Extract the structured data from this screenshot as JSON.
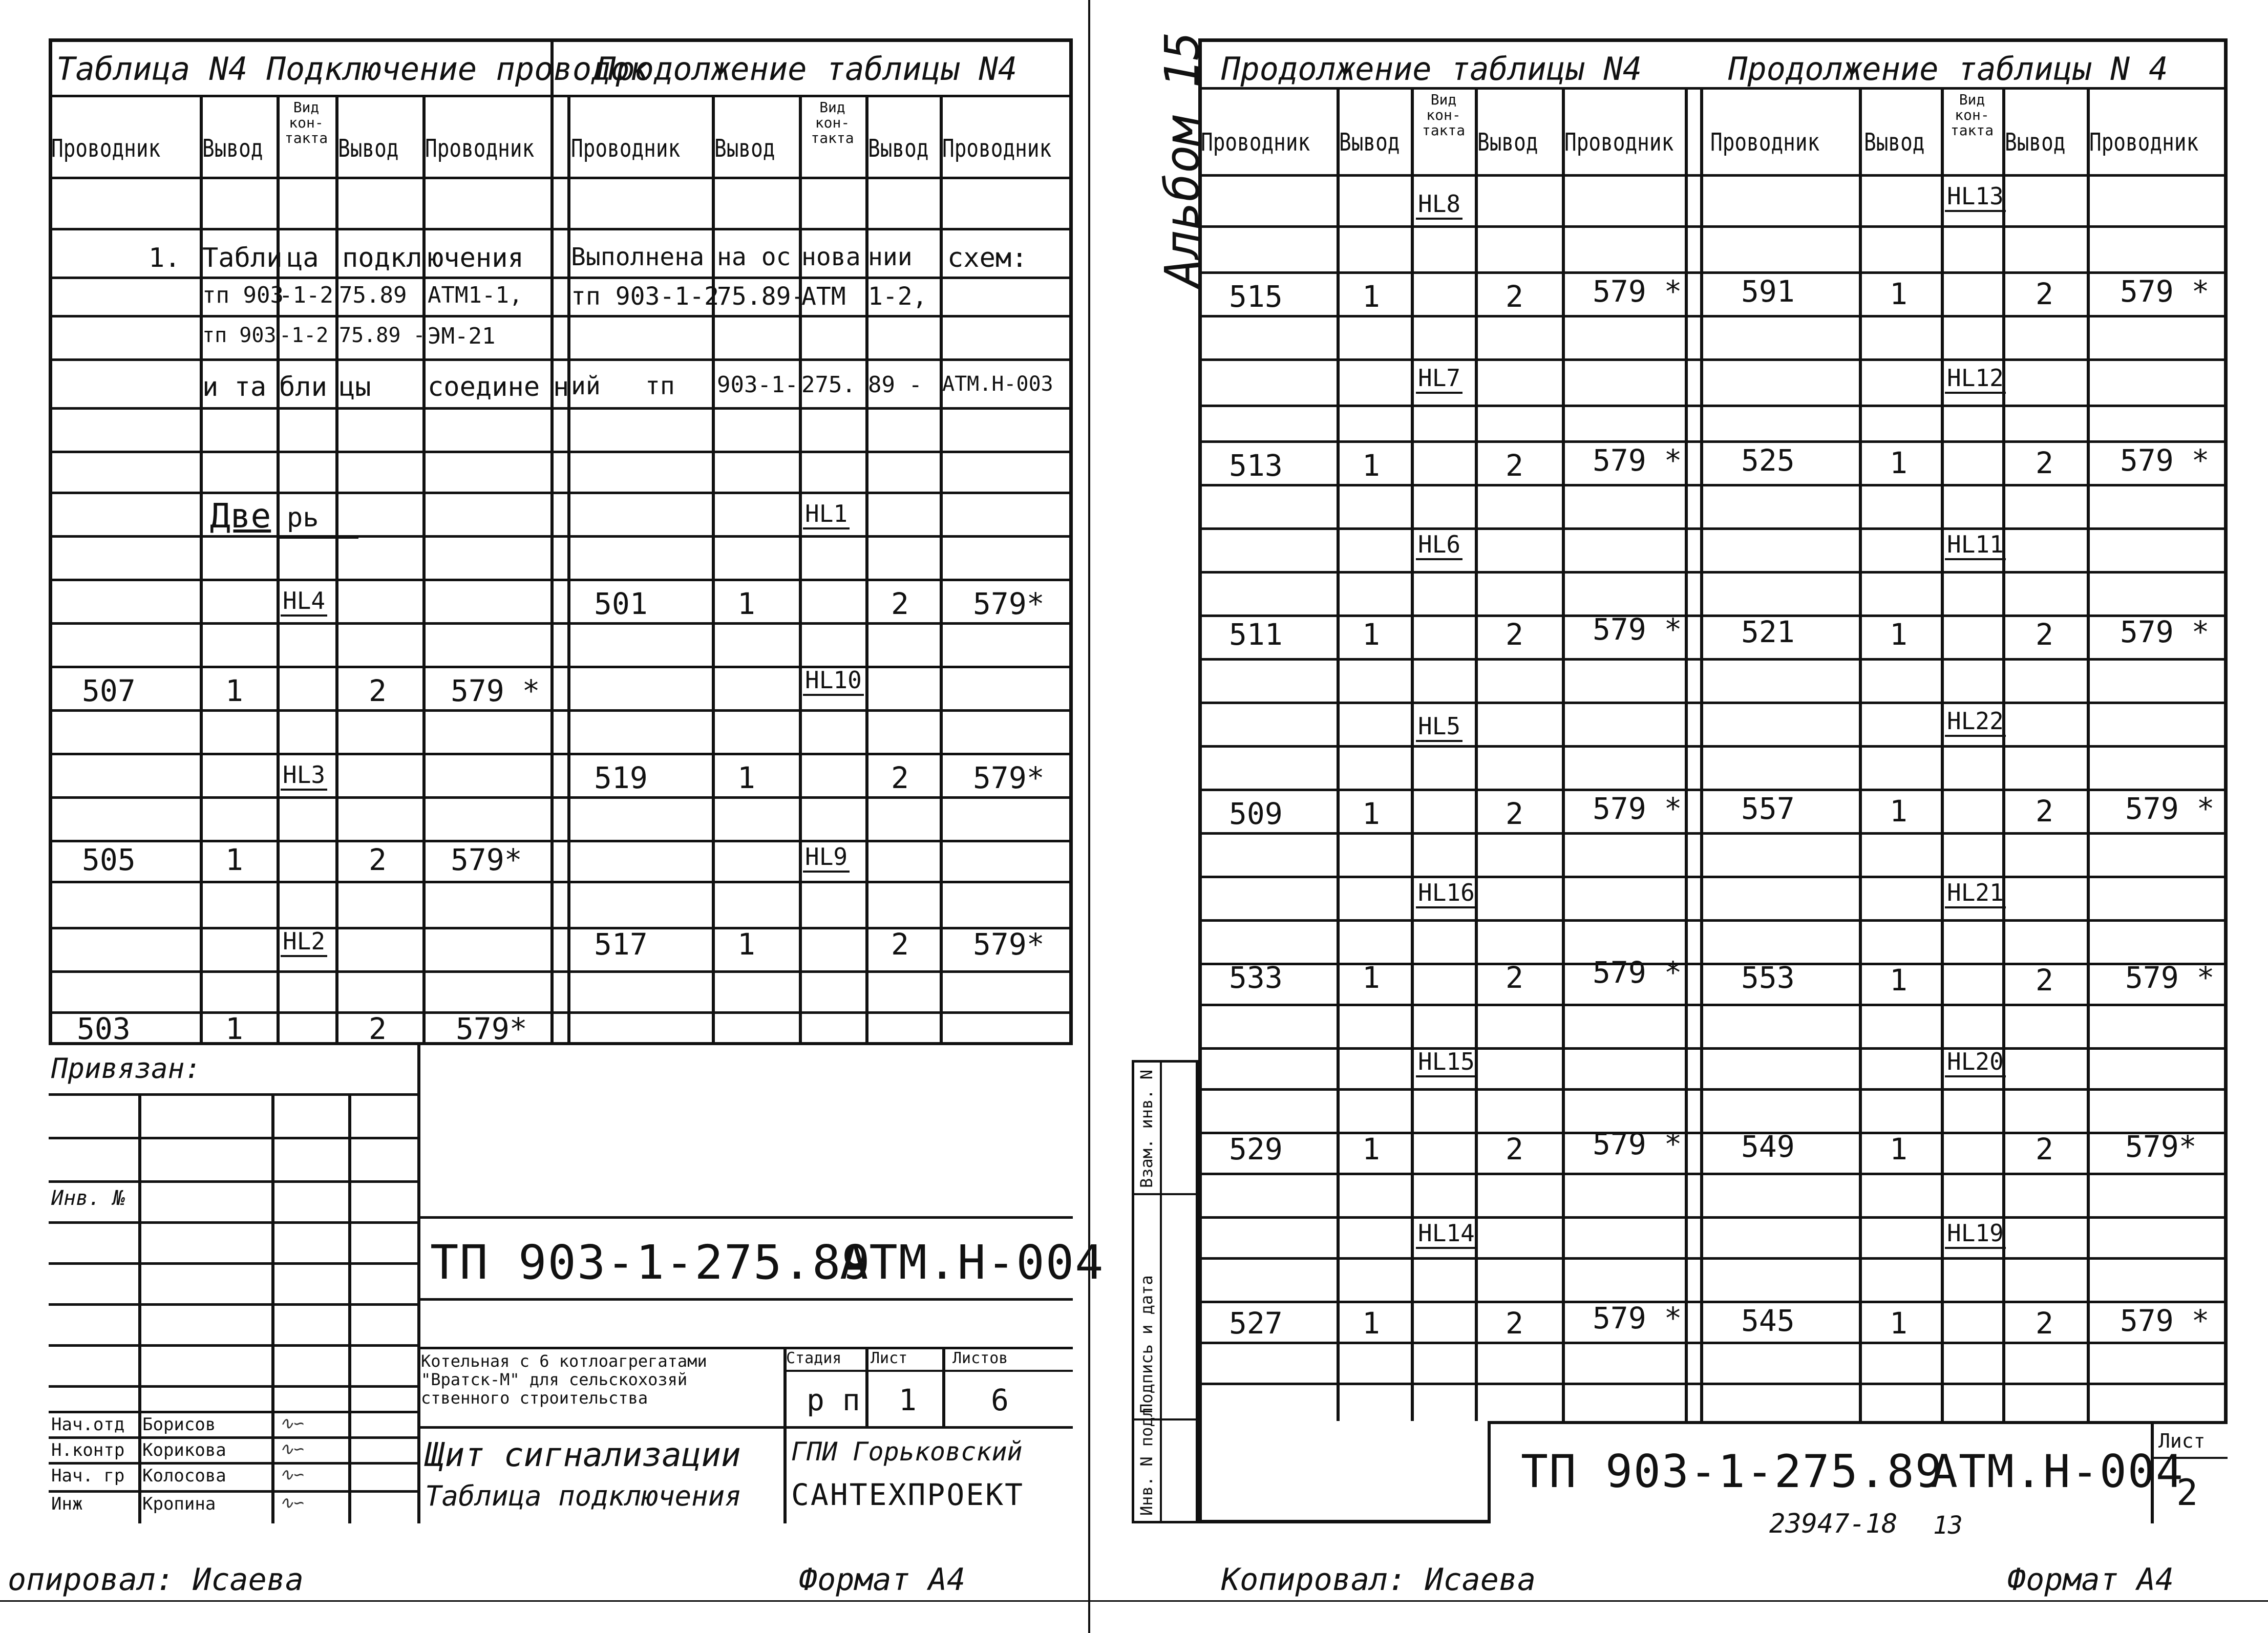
{
  "left": {
    "title_main": "Таблица N4 Подключение проводок",
    "title_cont": "Продолжение таблицы N4",
    "headers": {
      "conductor": "Проводник",
      "terminal": "Вывод",
      "contact_type": "Вид кон-такта"
    },
    "note": {
      "n": "1.",
      "l1": [
        "Табли",
        "ца",
        "подкл",
        "ючения"
      ],
      "l2": [
        "тп 903",
        "-1-2",
        "75.89",
        "АТМ1-1,"
      ],
      "l3": [
        "тп 903",
        "-1-2",
        "75.89 -",
        "ЭМ-21"
      ],
      "l4": [
        "и та",
        "бли",
        "цы",
        "соедине",
        "н"
      ],
      "r1": [
        "Выполнена",
        "на ос",
        "нова",
        "нии",
        "схем:"
      ],
      "r2": [
        "тп 903-1-2",
        "75.89-",
        "АТМ",
        "1-2,"
      ],
      "r3": [
        "ий",
        "тп",
        "903-1-",
        "275.",
        "89 -",
        "АТМ.Н-003"
      ]
    },
    "door_label": "Две",
    "door_label2": "рь",
    "col1": {
      "hl4": "HL4",
      "hl3": "HL3",
      "hl2": "HL2",
      "rows": [
        {
          "cond": "507",
          "t1": "1",
          "t2": "2",
          "dst": "579 *"
        },
        {
          "cond": "505",
          "t1": "1",
          "t2": "2",
          "dst": "579*"
        },
        {
          "cond": "503",
          "t1": "1",
          "t2": "2",
          "dst": "579*"
        }
      ]
    },
    "col2": {
      "hl1": "HL1",
      "hl10": "HL10",
      "hl9": "HL9",
      "rows": [
        {
          "cond": "501",
          "t1": "1",
          "t2": "2",
          "dst": "579*"
        },
        {
          "cond": "519",
          "t1": "1",
          "t2": "2",
          "dst": "579*"
        },
        {
          "cond": "517",
          "t1": "1",
          "t2": "2",
          "dst": "579*"
        }
      ]
    },
    "stamp": {
      "privyazan": "Привязан:",
      "inv_no": "Инв. №",
      "doc_code": "ТП 903-1-275.89",
      "doc_mark": "АТМ.Н-004",
      "object": "Котельная с 6 котлоагрегатами \"Вратск-М\" для сельскохозяй ственного строительства",
      "stage_label": "Стадия",
      "sheet_label": "Лист",
      "sheets_label": "Листов",
      "stage": "р п",
      "sheet": "1",
      "sheets": "6",
      "title1": "Щит сигнализации",
      "title2": "Таблица подключения",
      "org1": "ГПИ Горьковский",
      "org2": "САНТЕХПРОЕКТ",
      "people": [
        {
          "role": "Нач.отд",
          "name": "Борисов"
        },
        {
          "role": "Н.контр",
          "name": "Корикова"
        },
        {
          "role": "Нач. гр",
          "name": "Колосова"
        },
        {
          "role": "Инж",
          "name": "Кропина"
        }
      ]
    },
    "footer_left": "опировал: Исаева",
    "footer_right": "Формат А4"
  },
  "right": {
    "album": "Альбом 15",
    "title_a": "Продолжение таблицы N4",
    "title_b": "Продолжение таблицы N 4",
    "colA": {
      "hls": [
        "HL8",
        "HL7",
        "HL6",
        "HL5",
        "HL16",
        "HL15",
        "HL14"
      ],
      "rows": [
        {
          "cond": "515",
          "t1": "1",
          "t2": "2",
          "dst": "579 *"
        },
        {
          "cond": "513",
          "t1": "1",
          "t2": "2",
          "dst": "579 *"
        },
        {
          "cond": "511",
          "t1": "1",
          "t2": "2",
          "dst": "579 *"
        },
        {
          "cond": "509",
          "t1": "1",
          "t2": "2",
          "dst": "579 *"
        },
        {
          "cond": "533",
          "t1": "1",
          "t2": "2",
          "dst": "579 *"
        },
        {
          "cond": "529",
          "t1": "1",
          "t2": "2",
          "dst": "579 *"
        },
        {
          "cond": "527",
          "t1": "1",
          "t2": "2",
          "dst": "579 *"
        }
      ]
    },
    "colB": {
      "hls": [
        "HL13",
        "HL12",
        "HL11",
        "HL22",
        "HL21",
        "HL20",
        "HL19"
      ],
      "rows": [
        {
          "cond": "591",
          "t1": "1",
          "t2": "2",
          "dst": "579 *"
        },
        {
          "cond": "525",
          "t1": "1",
          "t2": "2",
          "dst": "579 *"
        },
        {
          "cond": "521",
          "t1": "1",
          "t2": "2",
          "dst": "579 *"
        },
        {
          "cond": "557",
          "t1": "1",
          "t2": "2",
          "dst": "579 *"
        },
        {
          "cond": "553",
          "t1": "1",
          "t2": "2",
          "dst": "579 *"
        },
        {
          "cond": "549",
          "t1": "1",
          "t2": "2",
          "dst": "579*"
        },
        {
          "cond": "545",
          "t1": "1",
          "t2": "2",
          "dst": "579 *"
        }
      ]
    },
    "side_labels": [
      "Инв. N подл",
      "Подпись и дата",
      "Взам. инв. N"
    ],
    "doc_code": "ТП 903-1-275.89",
    "doc_mark": "АТМ.Н-004",
    "sheet_label": "Лист",
    "sheet_no": "2",
    "stamp_no": "23947-18",
    "stamp_no2": "13",
    "footer_left": "Копировал: Исаева",
    "footer_right": "Формат А4"
  }
}
